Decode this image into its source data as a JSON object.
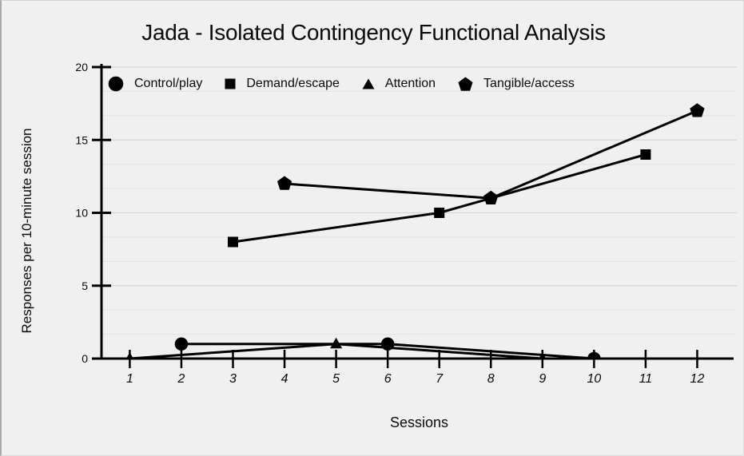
{
  "page": {
    "background": "#f0f0f0",
    "text_color": "#0a0a0a"
  },
  "chart_data": {
    "type": "line",
    "title": "Jada - Isolated Contingency Functional Analysis",
    "xlabel": "Sessions",
    "ylabel": "Responses per 10-minute session",
    "x_tick_labels": [
      "1",
      "2",
      "3",
      "4",
      "5",
      "6",
      "7",
      "8",
      "9",
      "10",
      "11",
      "12"
    ],
    "xlim": [
      1,
      12
    ],
    "ylim": [
      0,
      20
    ],
    "y_major_ticks": [
      0,
      5,
      10,
      15,
      20
    ],
    "y_minor_step": 1.6667,
    "grid": "horizontal, major + minor thirds",
    "legend_position": "top-left inside plot",
    "series_color": "#000000",
    "major_grid_color": "#d5d5d5",
    "minor_grid_color": "#e3e3e3",
    "series": [
      {
        "name": "Control/play",
        "marker": "circle",
        "x": [
          2,
          6,
          10
        ],
        "values": [
          1,
          1,
          0
        ]
      },
      {
        "name": "Demand/escape",
        "marker": "square",
        "x": [
          3,
          7,
          11
        ],
        "values": [
          8,
          10,
          14
        ]
      },
      {
        "name": "Attention",
        "marker": "triangle",
        "x": [
          1,
          5,
          9
        ],
        "values": [
          0,
          1,
          0
        ]
      },
      {
        "name": "Tangible/access",
        "marker": "pentagon",
        "x": [
          4,
          8,
          12
        ],
        "values": [
          12,
          11,
          17
        ]
      }
    ]
  }
}
